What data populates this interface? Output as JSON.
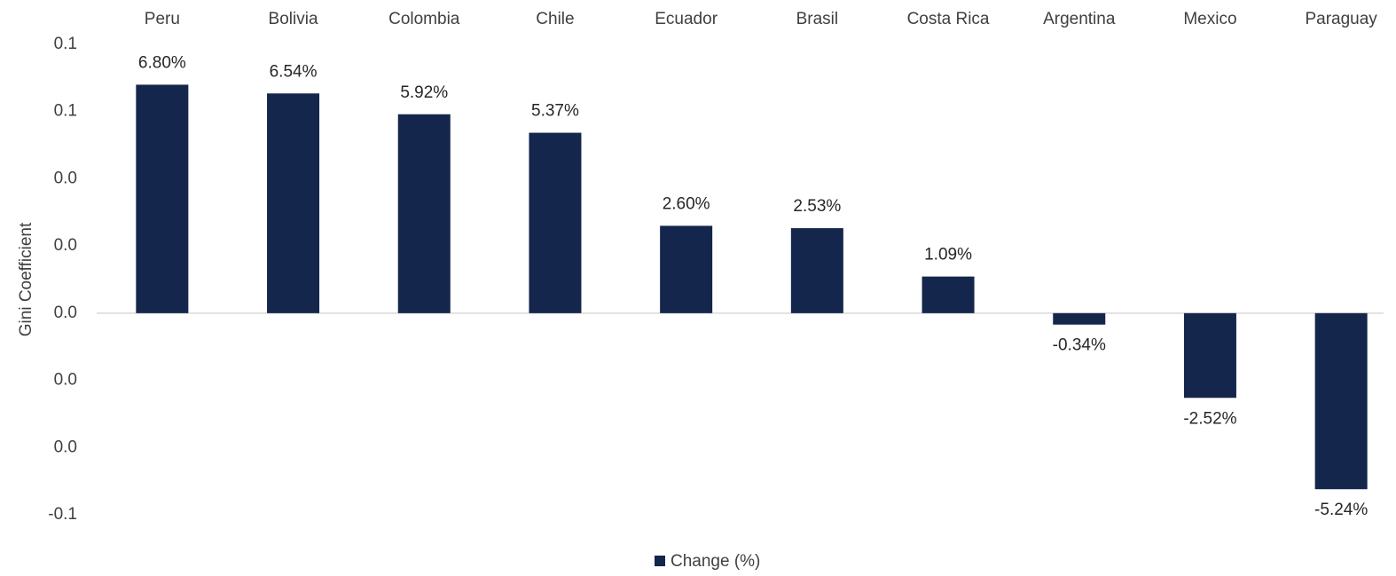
{
  "chart_data": {
    "type": "bar",
    "y_label": "Gini Coefficient",
    "categories": [
      "Peru",
      "Bolivia",
      "Colombia",
      "Chile",
      "Ecuador",
      "Brasil",
      "Costa Rica",
      "Argentina",
      "Mexico",
      "Paraguay"
    ],
    "series": [
      {
        "name": "Change (%)",
        "color": "#14264c",
        "values": [
          0.068,
          0.0654,
          0.0592,
          0.0537,
          0.026,
          0.0253,
          0.0109,
          -0.0034,
          -0.0252,
          -0.0524
        ],
        "value_labels": [
          "6.80%",
          "6.54%",
          "5.92%",
          "5.37%",
          "2.60%",
          "2.53%",
          "1.09%",
          "-0.34%",
          "-2.52%",
          "-5.24%"
        ]
      }
    ],
    "ylim": [
      -0.06,
      0.08
    ],
    "yticks": [
      {
        "value": 0.08,
        "label": "0.1"
      },
      {
        "value": 0.06,
        "label": "0.1"
      },
      {
        "value": 0.04,
        "label": "0.0"
      },
      {
        "value": 0.02,
        "label": "0.0"
      },
      {
        "value": 0,
        "label": "0.0"
      },
      {
        "value": -0.02,
        "label": "0.0"
      },
      {
        "value": -0.04,
        "label": "0.0"
      },
      {
        "value": -0.06,
        "label": "-0.1"
      }
    ],
    "grid": false,
    "legend": "bottom"
  }
}
